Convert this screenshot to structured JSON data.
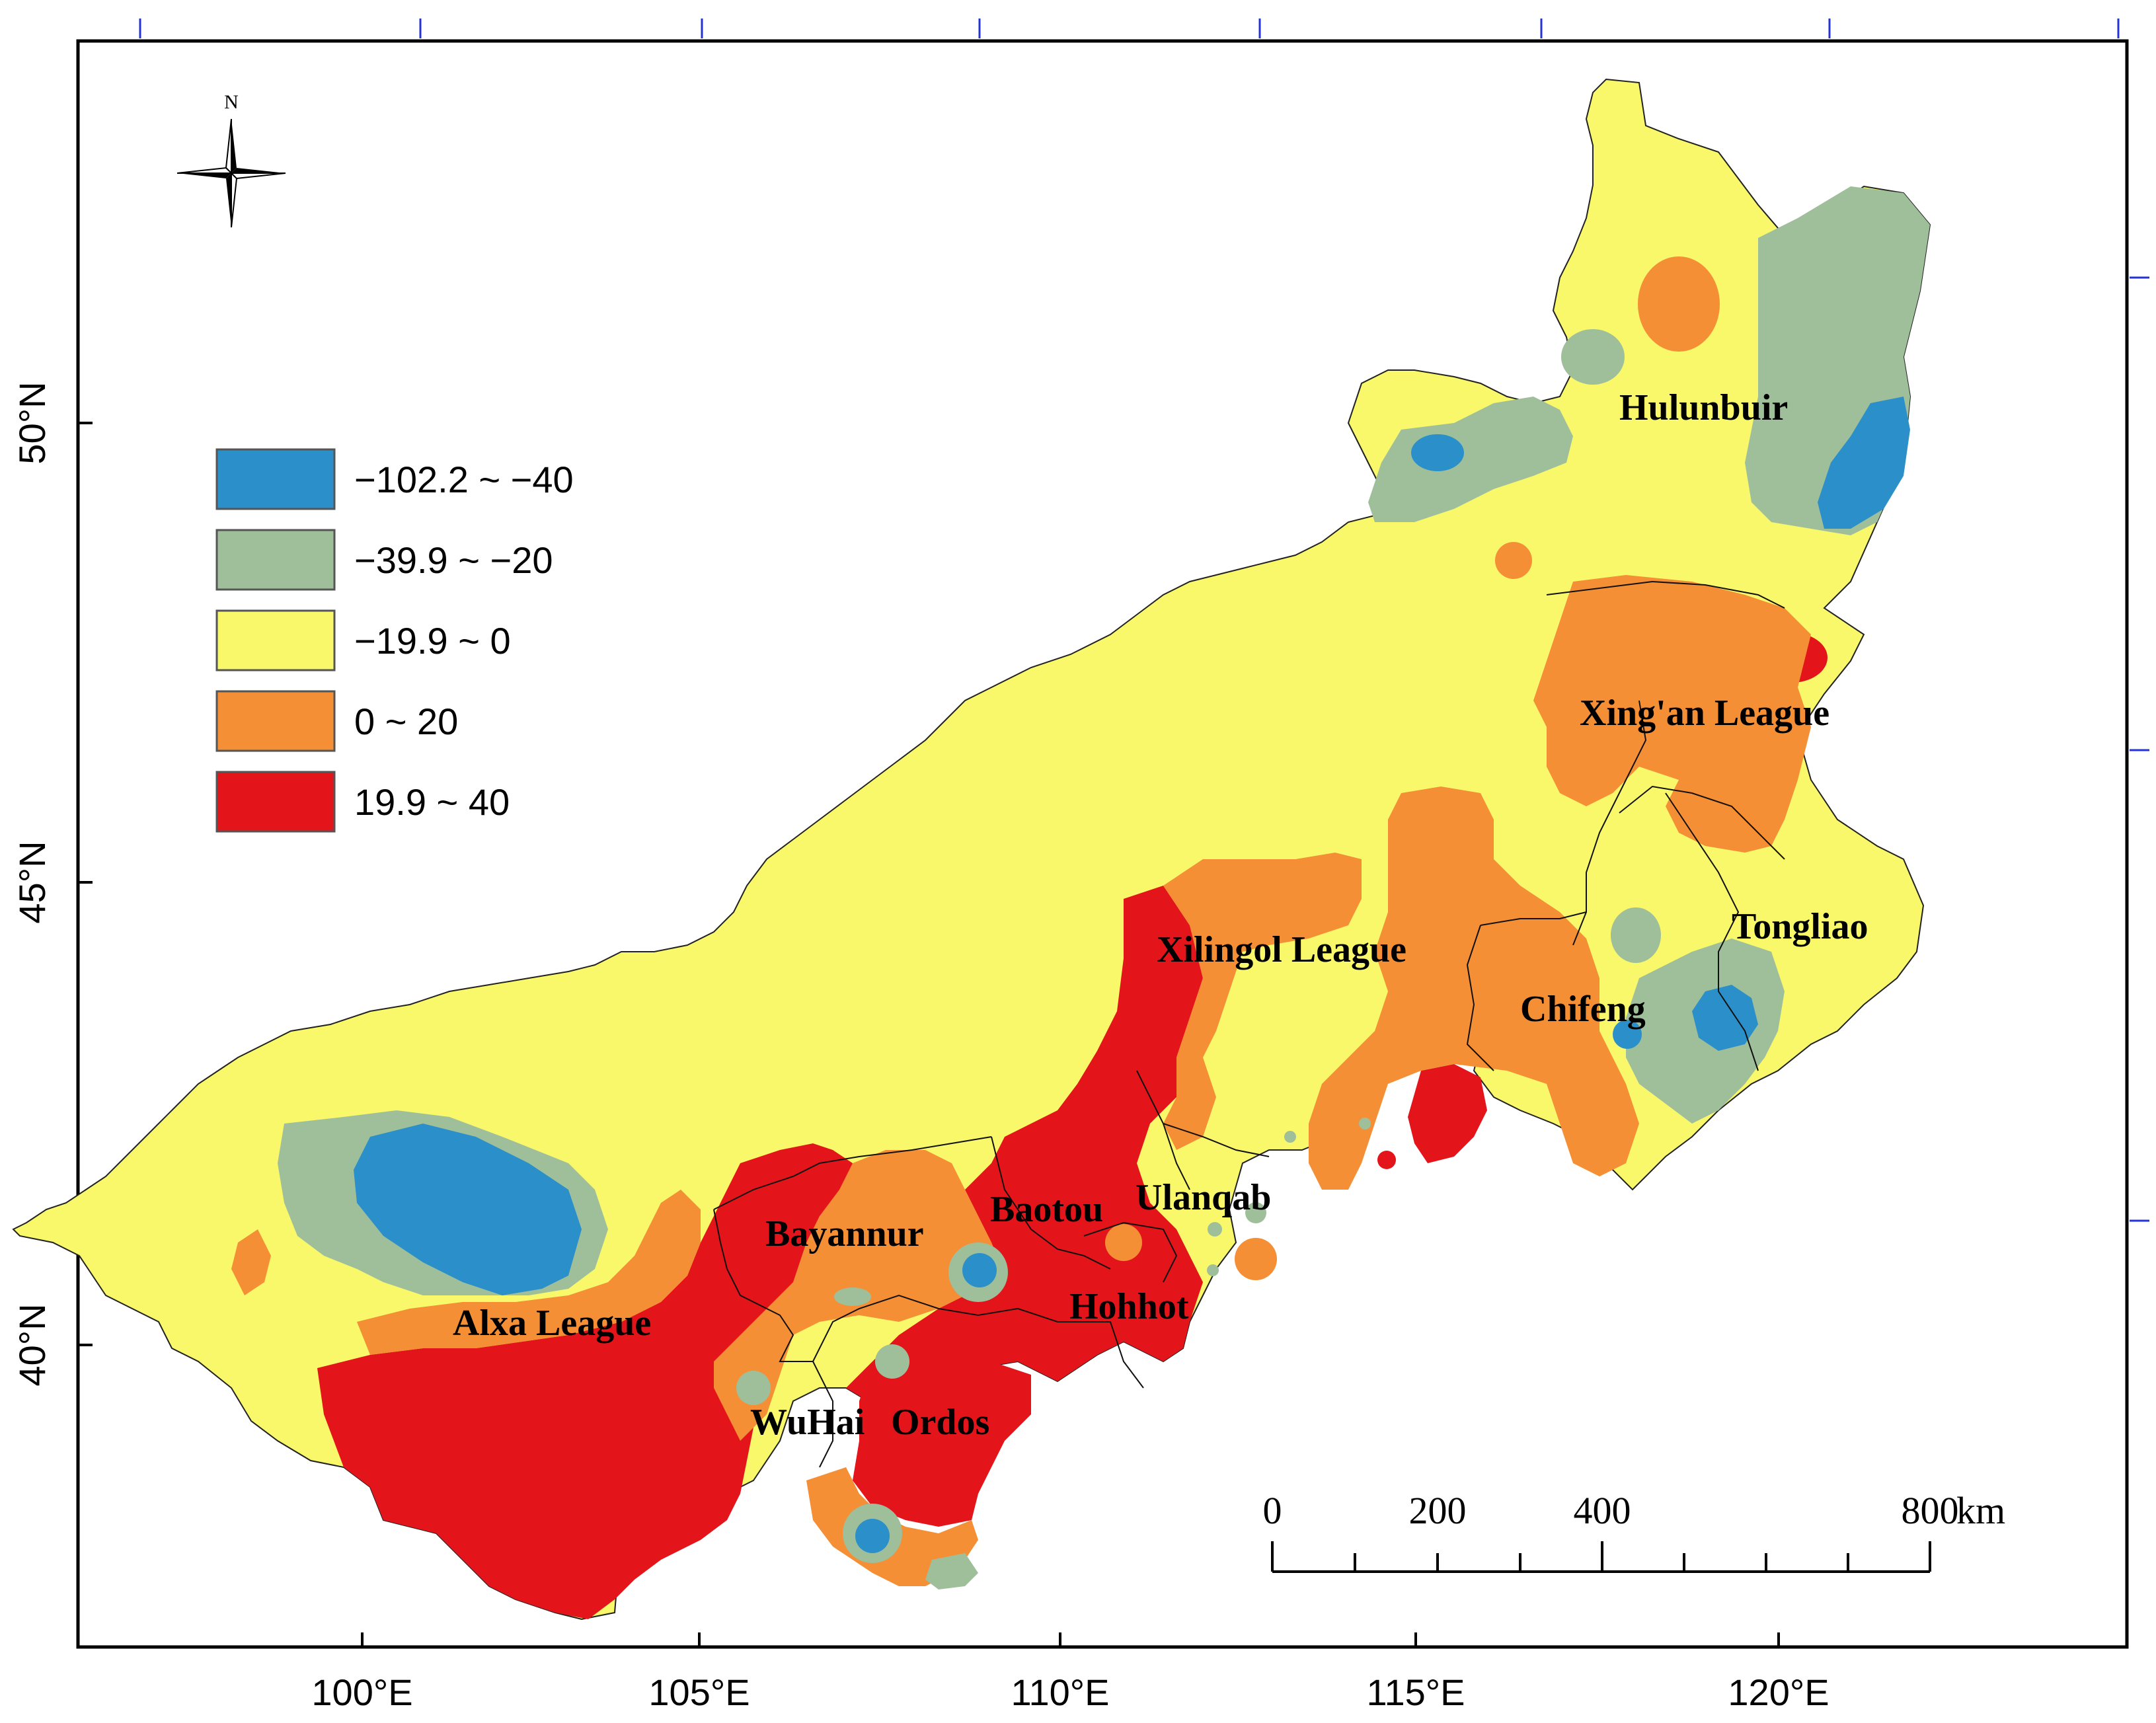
{
  "map": {
    "north_label": "N",
    "lon_labels": [
      "100°E",
      "105°E",
      "110°E",
      "115°E",
      "120°E"
    ],
    "lat_labels": [
      "50°N",
      "45°N",
      "40°N"
    ],
    "legend": [
      {
        "label": "−102.2 ~ −40",
        "color": "#2b8fc9"
      },
      {
        "label": "−39.9 ~ −20",
        "color": "#9fbf9b"
      },
      {
        "label": "−19.9 ~ 0",
        "color": "#f8f86a"
      },
      {
        "label": "0 ~ 20",
        "color": "#f58f35"
      },
      {
        "label": "19.9 ~ 40",
        "color": "#e3141a"
      }
    ],
    "regions": [
      "Hulunbuir",
      "Xing'an League",
      "Tongliao",
      "Xilingol League",
      "Chifeng",
      "Ulanqab",
      "Baotou",
      "Bayannur",
      "Hohhot",
      "Alxa League",
      "WuHai",
      "Ordos"
    ],
    "scale_bar": {
      "ticks": [
        "0",
        "200",
        "400",
        "800"
      ],
      "unit": "km"
    }
  }
}
